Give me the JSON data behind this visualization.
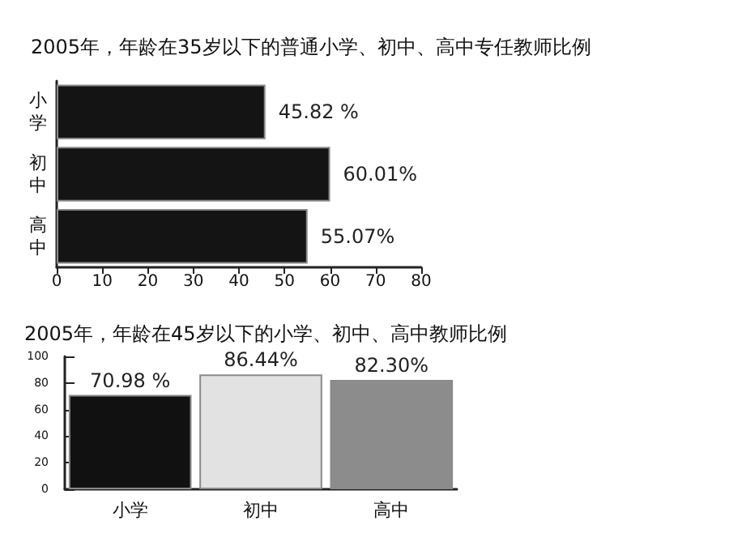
{
  "chart_data": [
    {
      "type": "bar",
      "orientation": "horizontal",
      "title": "2005年，年龄在35岁以下的普通小学、初中、高中专任教师比例",
      "categories": [
        "小学",
        "初中",
        "高中"
      ],
      "values": [
        45.82,
        60.01,
        55.07
      ],
      "value_labels": [
        "45.82 %",
        "60.01%",
        "55.07%"
      ],
      "color": "#141414",
      "xlim": [
        0,
        80
      ],
      "xticks": [
        0,
        10,
        20,
        30,
        40,
        50,
        60,
        70,
        80
      ],
      "grid": false
    },
    {
      "type": "bar",
      "title": "2005年，年龄在45岁以下的小学、初中、高中教师比例",
      "categories": [
        "小学",
        "初中",
        "高中"
      ],
      "values": [
        70.98,
        86.44,
        82.3
      ],
      "value_labels": [
        "70.98 %",
        "86.44%",
        "82.30%"
      ],
      "colors": [
        "#111111",
        "#e2e2e2",
        "#8c8c8c"
      ],
      "ylim": [
        0,
        100
      ],
      "yticks": [
        0,
        20,
        40,
        60,
        80,
        100
      ],
      "grid": false
    }
  ]
}
